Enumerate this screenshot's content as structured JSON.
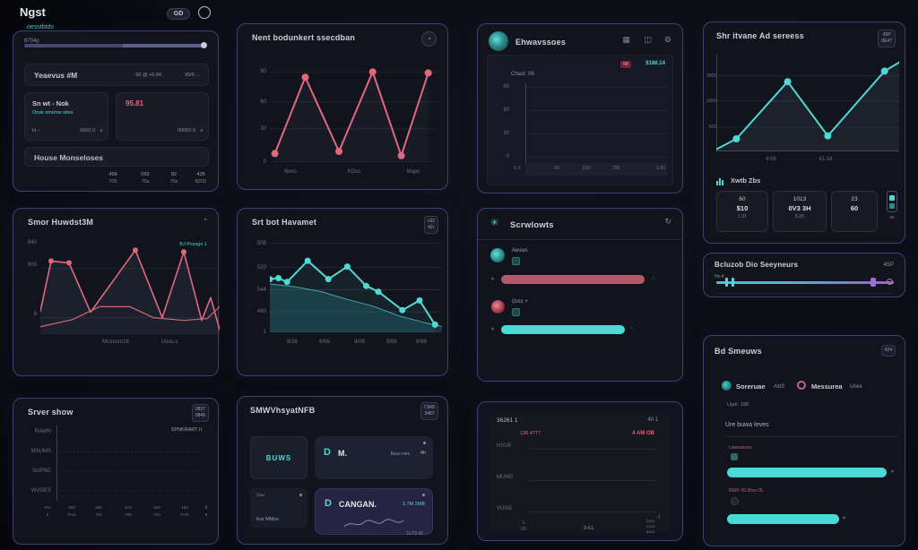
{
  "colors": {
    "accent_teal": "#4ed8d4",
    "accent_red": "#e0697e",
    "bar_red": "#b2596b",
    "bar_teal": "#4ad9d6",
    "card_border": "#443e72"
  },
  "icons": {
    "gauge": "◔",
    "grid": "▦",
    "columns": "◫",
    "gear": "⚙",
    "refresh": "↻",
    "dots": "∴",
    "star": "∗",
    "chev_down": "∨",
    "chev_right": "›",
    "flower": "✳",
    "person": "◔"
  },
  "header": {
    "title": "Ngst",
    "subtitle": "oesstbtds",
    "badge": "GD"
  },
  "cardA": {
    "slider_label": "8704p",
    "row1": {
      "title": "Yeaevus #M",
      "stat1": "66 @ +6.84",
      "stat2": "95/6 →"
    },
    "sub1": {
      "title": "Sn wt - Nok",
      "subtitle": "Onsk ememe sites",
      "foot_left": "H --",
      "foot_right": "0000 0"
    },
    "sub2": {
      "value": "95.81",
      "foot_right": "00000 0"
    },
    "input": "House Monseloses",
    "stats": [
      [
        "458",
        "705"
      ],
      [
        "093",
        "70s"
      ],
      [
        "82",
        "70s"
      ],
      [
        "428",
        "8203"
      ]
    ]
  },
  "cardB": {
    "title": "Smor Huwdst3M",
    "legend": "BJ Psssgn 1",
    "yticks": [
      "840",
      "600",
      "8"
    ],
    "xticks": [
      "Mozesrn28",
      "Uoos.s"
    ],
    "chart": {
      "grid": [
        0.28,
        0.82,
        1.0
      ],
      "gridColor": "#20242f",
      "series": [
        {
          "color": "#e0697e",
          "width": 1.6,
          "fill": "rgba(75,90,120,0.18)",
          "dots": [
            1,
            2,
            4,
            6
          ],
          "r": 3,
          "points": [
            [
              0.0,
              0.25
            ],
            [
              0.06,
              0.8
            ],
            [
              0.16,
              0.78
            ],
            [
              0.28,
              0.24
            ],
            [
              0.53,
              0.92
            ],
            [
              0.68,
              0.18
            ],
            [
              0.8,
              0.9
            ],
            [
              0.9,
              0.15
            ],
            [
              0.95,
              0.4
            ],
            [
              1.0,
              0.05
            ]
          ]
        },
        {
          "color": "#c96a76",
          "width": 1.2,
          "points": [
            [
              0.0,
              0.08
            ],
            [
              0.18,
              0.16
            ],
            [
              0.33,
              0.3
            ],
            [
              0.5,
              0.3
            ],
            [
              0.63,
              0.18
            ],
            [
              0.8,
              0.15
            ],
            [
              0.93,
              0.17
            ],
            [
              1.0,
              0.3
            ]
          ]
        }
      ]
    }
  },
  "cardC": {
    "title": "Srver show",
    "badge": [
      "0837",
      "0846"
    ],
    "note": "SPNKRART II",
    "rows": [
      "RAWN",
      "MSUMS",
      "SUPNC",
      "WVGES"
    ],
    "xlabels": [
      [
        "0%",
        "9"
      ],
      [
        "360",
        "Fms"
      ],
      [
        "380",
        "70s"
      ],
      [
        "376",
        "70s"
      ],
      [
        "058",
        "70s"
      ],
      [
        "158",
        "Fms"
      ],
      [
        "$",
        "9"
      ]
    ],
    "chart": {
      "grid": [
        0.08,
        0.35,
        0.61,
        0.87
      ],
      "gridColor": "#2e3344",
      "gridDash": "1 3",
      "axisLeft": true,
      "series": []
    }
  },
  "cardD": {
    "title": "Nent bodunkert ssecdban",
    "yticks": [
      "80",
      "60",
      "30",
      "0"
    ],
    "xticks": [
      "Nexs",
      "KOss",
      "Mapc"
    ],
    "chart": {
      "grid": [
        0.16,
        0.44,
        0.69,
        1.0
      ],
      "gridColor": "#20242f",
      "series": [
        {
          "color": "#e0697e",
          "width": 2,
          "dots": true,
          "r": 4,
          "fill": "rgba(100,120,150,0.08)",
          "points": [
            [
              0.03,
              0.08
            ],
            [
              0.21,
              0.79
            ],
            [
              0.41,
              0.1
            ],
            [
              0.61,
              0.84
            ],
            [
              0.78,
              0.06
            ],
            [
              0.94,
              0.83
            ]
          ]
        }
      ]
    }
  },
  "cardE": {
    "title": "Srt bot Havamet",
    "badge": [
      "+92",
      "42r"
    ],
    "yticks": [
      "508",
      "520",
      "544",
      "480",
      "1"
    ],
    "xticks": [
      "8/26",
      "6/96",
      "9/06",
      "9/86",
      "8/96"
    ],
    "chart": {
      "grid": [
        0.08,
        0.33,
        0.56,
        0.79,
        1.0
      ],
      "gridColor": "#232a38",
      "series": [
        {
          "color": "rgba(80,190,195,0.8)",
          "width": 1,
          "fill": "rgba(35,110,120,0.35)",
          "points": [
            [
              0,
              0.5
            ],
            [
              0.15,
              0.47
            ],
            [
              0.3,
              0.42
            ],
            [
              0.45,
              0.34
            ],
            [
              0.6,
              0.27
            ],
            [
              0.75,
              0.17
            ],
            [
              0.9,
              0.1
            ],
            [
              1,
              0.06
            ]
          ]
        },
        {
          "color": "#52d8d6",
          "width": 2,
          "dots": true,
          "r": 3.5,
          "fill": "rgba(80,210,210,0.08)",
          "points": [
            [
              0.0,
              0.55
            ],
            [
              0.05,
              0.56
            ],
            [
              0.1,
              0.52
            ],
            [
              0.22,
              0.74
            ],
            [
              0.34,
              0.55
            ],
            [
              0.45,
              0.68
            ],
            [
              0.56,
              0.48
            ],
            [
              0.63,
              0.42
            ],
            [
              0.77,
              0.23
            ],
            [
              0.87,
              0.33
            ],
            [
              0.96,
              0.08
            ]
          ]
        }
      ]
    }
  },
  "cardF": {
    "title": "SMWVhsyatNFB",
    "badge": [
      "CM/8",
      "3487"
    ],
    "tile1": "BUWS",
    "tile2": {
      "icon": "D",
      "name": "M.",
      "meta": "Bass vies",
      "time": "4h"
    },
    "tile3": {
      "top": "Gav:",
      "bottom": "Kur MMus"
    },
    "tile4": {
      "icon": "D",
      "name": "CANGAN.",
      "meta": "1.7M 2MB"
    },
    "footer": "11/79 08"
  },
  "cardG": {
    "title": "Ehwavssoes",
    "badge_red": "98",
    "value": "$186.14",
    "label": "Chast: 08",
    "yticks": [
      "90",
      "60",
      "30",
      "0"
    ],
    "xticks": [
      "0.5",
      "50",
      "310",
      "785",
      "1.00"
    ],
    "chart": {
      "grid": [
        0.05,
        0.3,
        0.55,
        0.8
      ],
      "gridColor": "#232837",
      "axis": true,
      "series": []
    }
  },
  "cardH": {
    "title": "Scrwlowts",
    "rows": [
      {
        "label": "Aesws",
        "width": 0.99
      },
      {
        "label": "Grss +",
        "width": 0.85
      }
    ]
  },
  "cardI": {
    "title": "36261 1",
    "badge": "40 1",
    "red_left": "138 4777",
    "red_right": "4 AM OB",
    "rows": [
      "HSU5",
      "MUNG",
      "VUNG"
    ],
    "x1": [
      "1",
      "09"
    ],
    "x2": "0-61.",
    "stack": [
      "2103",
      "2103",
      "2103"
    ],
    "corner": ", )"
  },
  "cardJ": {
    "title": "Shr itvane Ad sereess",
    "badge": [
      "45P",
      "0E47"
    ],
    "yticks": [
      "3000",
      "1000",
      "500"
    ],
    "xticks": [
      "4:06",
      "41:16"
    ],
    "stats_label": "Xwtb Zbs",
    "boxes": [
      [
        "60",
        "$10",
        "1.01"
      ],
      [
        "1013",
        "0V3 3H",
        "5.25"
      ],
      [
        "23",
        "60",
        "."
      ]
    ],
    "battery": "88",
    "chart": {
      "grid": [
        0.22,
        0.48,
        0.75
      ],
      "gridColor": "#20242f",
      "axis": true,
      "series": [
        {
          "color": "#4fd8d4",
          "width": 2,
          "dots": [
            1,
            2,
            3,
            4
          ],
          "r": 4,
          "fill": "rgba(130,160,180,0.10)",
          "points": [
            [
              0.0,
              0.02
            ],
            [
              0.11,
              0.13
            ],
            [
              0.39,
              0.72
            ],
            [
              0.61,
              0.16
            ],
            [
              0.92,
              0.83
            ],
            [
              1.0,
              0.92
            ]
          ]
        }
      ]
    }
  },
  "cardK": {
    "title": "Bcluzob Dio Seeyneurs",
    "value": "45P",
    "handle_label": "Hs-4"
  },
  "cardL": {
    "title": "Bd Smeuws",
    "badge": "424",
    "legend": [
      {
        "name": "Soreruae",
        "meta": "AbS"
      },
      {
        "name": "Messurea",
        "meta": "Urex"
      }
    ],
    "line1": "Ugdr: 188",
    "line2": "Ure buwa  Ieves",
    "bars": [
      {
        "label": "Lweedovss-",
        "width": 1.0
      },
      {
        "label": "REPr 00 d5vs OL",
        "width": 0.7
      }
    ]
  }
}
